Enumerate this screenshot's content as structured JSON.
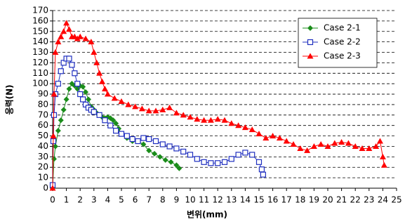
{
  "chart_data": {
    "type": "scatter-line",
    "x_label": "변위(mm)",
    "y_label": "응력(N)",
    "xlim": [
      0,
      25
    ],
    "ylim": [
      0,
      170
    ],
    "xticks": [
      0,
      1,
      2,
      3,
      4,
      5,
      6,
      7,
      8,
      9,
      10,
      11,
      12,
      13,
      14,
      15,
      16,
      17,
      18,
      19,
      20,
      21,
      22,
      23,
      24,
      25
    ],
    "yticks": [
      0,
      10,
      20,
      30,
      40,
      50,
      60,
      70,
      80,
      90,
      100,
      110,
      120,
      130,
      140,
      150,
      160,
      170
    ],
    "grid": true,
    "legend": "upper right",
    "series": [
      {
        "name": "Case 2-1",
        "color": "#1a8c1a",
        "marker": "diamond",
        "x": [
          0,
          0.1,
          0.2,
          0.4,
          0.6,
          0.8,
          1.0,
          1.2,
          1.4,
          1.6,
          1.8,
          2.0,
          2.2,
          2.4,
          2.6,
          2.8,
          3.0,
          3.2,
          3.4,
          3.6,
          3.8,
          4.0,
          4.2,
          4.4,
          4.6,
          4.8,
          5.0,
          5.4,
          5.8,
          6.2,
          6.6,
          7.0,
          7.4,
          7.8,
          8.2,
          8.6,
          9.0,
          9.2
        ],
        "values": [
          0,
          28,
          40,
          55,
          65,
          75,
          85,
          95,
          100,
          98,
          95,
          98,
          97,
          92,
          85,
          78,
          75,
          72,
          70,
          68,
          67,
          68,
          67,
          65,
          62,
          57,
          52,
          48,
          45,
          45,
          42,
          36,
          33,
          30,
          27,
          25,
          22,
          19
        ]
      },
      {
        "name": "Case 2-2",
        "color": "#1f2fbf",
        "marker": "square",
        "x": [
          0,
          0.05,
          0.1,
          0.2,
          0.4,
          0.6,
          0.8,
          1.0,
          1.2,
          1.4,
          1.6,
          1.8,
          2.0,
          2.2,
          2.4,
          2.6,
          2.8,
          3.0,
          3.4,
          3.8,
          4.2,
          4.6,
          5.0,
          5.4,
          5.8,
          6.2,
          6.6,
          7.0,
          7.5,
          8,
          8.5,
          9,
          9.5,
          10,
          10.5,
          11,
          11.5,
          12,
          12.5,
          13,
          13.5,
          14,
          14.5,
          15,
          15.2,
          15.3
        ],
        "values": [
          3,
          45,
          70,
          90,
          100,
          112,
          120,
          124,
          124,
          118,
          110,
          100,
          90,
          85,
          80,
          77,
          75,
          73,
          70,
          65,
          60,
          55,
          52,
          50,
          47,
          45,
          48,
          47,
          45,
          42,
          40,
          38,
          35,
          32,
          28,
          25,
          24,
          24,
          25,
          28,
          32,
          34,
          32,
          25,
          18,
          13
        ]
      },
      {
        "name": "Case 2-3",
        "color": "#ff0000",
        "marker": "triangle",
        "x": [
          0,
          0.05,
          0.1,
          0.2,
          0.4,
          0.6,
          0.8,
          1.0,
          1.2,
          1.4,
          1.6,
          1.8,
          2.0,
          2.4,
          2.8,
          3.0,
          3.2,
          3.4,
          3.6,
          3.8,
          4.0,
          4.5,
          5,
          5.5,
          6,
          6.5,
          7,
          7.5,
          8,
          8.5,
          9,
          9.5,
          10,
          10.5,
          11,
          11.5,
          12,
          12.5,
          13,
          13.5,
          14,
          14.5,
          15,
          15.5,
          16,
          16.5,
          17,
          17.5,
          18,
          18.5,
          19,
          19.5,
          20,
          20.5,
          21,
          21.5,
          22,
          22.5,
          23,
          23.5,
          23.8,
          24,
          24.1
        ],
        "values": [
          0,
          50,
          90,
          130,
          140,
          145,
          150,
          158,
          152,
          145,
          145,
          143,
          145,
          143,
          140,
          130,
          120,
          110,
          102,
          95,
          90,
          86,
          83,
          80,
          78,
          76,
          74,
          74,
          75,
          77,
          72,
          70,
          68,
          66,
          65,
          65,
          66,
          65,
          62,
          60,
          58,
          56,
          52,
          48,
          50,
          48,
          45,
          42,
          38,
          36,
          40,
          42,
          40,
          43,
          44,
          43,
          40,
          38,
          38,
          40,
          45,
          30,
          22
        ]
      }
    ]
  }
}
